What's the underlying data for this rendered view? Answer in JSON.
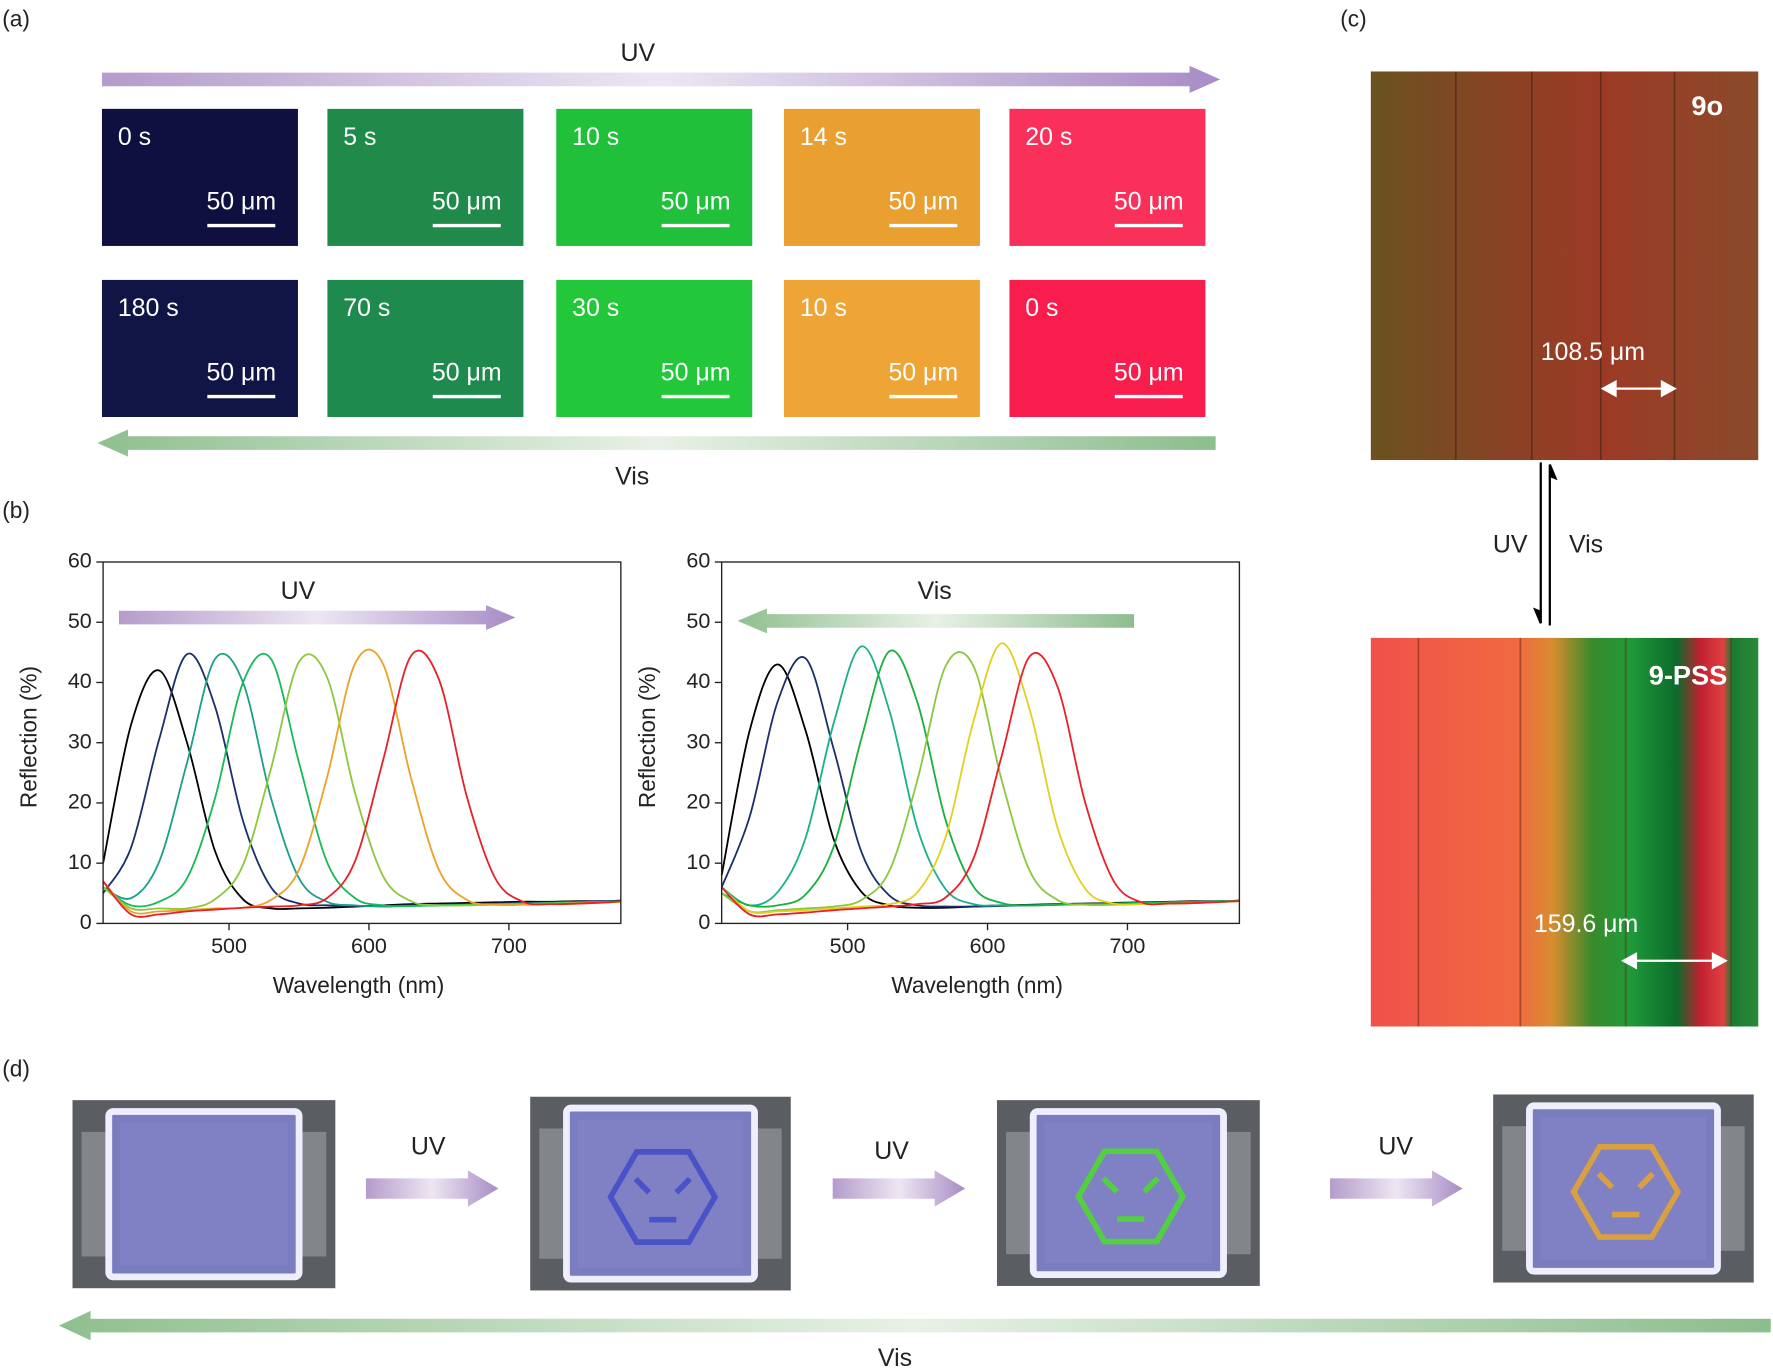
{
  "panel_labels": [
    "(a)",
    "(b)",
    "(c)",
    "(d)"
  ],
  "panel_a": {
    "uv_label": "UV",
    "vis_label": "Vis",
    "top_row": [
      {
        "time": "0 s",
        "scale_bar": "50 μm",
        "color": "#0f1040"
      },
      {
        "time": "5 s",
        "scale_bar": "50 μm",
        "color": "#1f8a4a"
      },
      {
        "time": "10 s",
        "scale_bar": "50 μm",
        "color": "#20c03a"
      },
      {
        "time": "14 s",
        "scale_bar": "50 μm",
        "color": "#e9a030"
      },
      {
        "time": "20 s",
        "scale_bar": "50 μm",
        "color": "#f8305a"
      }
    ],
    "bottom_row": [
      {
        "time": "180 s",
        "scale_bar": "50 μm",
        "color": "#101545"
      },
      {
        "time": "70 s",
        "scale_bar": "50 μm",
        "color": "#1f8a4e"
      },
      {
        "time": "30 s",
        "scale_bar": "50 μm",
        "color": "#22c83a"
      },
      {
        "time": "10 s",
        "scale_bar": "50 μm",
        "color": "#eea535"
      },
      {
        "time": "0 s",
        "scale_bar": "50 μm",
        "color": "#f81d4c"
      }
    ]
  },
  "chart_data": [
    {
      "type": "line",
      "xlabel": "Wavelength (nm)",
      "ylabel": "Reflection (%)",
      "annotation": "UV",
      "annotation_arrow": "right",
      "x": [
        410,
        430,
        450,
        470,
        490,
        510,
        530,
        550,
        570,
        590,
        610,
        630,
        650,
        670,
        690,
        710,
        730,
        750,
        770,
        780
      ],
      "xlim": [
        410,
        780
      ],
      "xticks": [
        500,
        600,
        700
      ],
      "ylim": [
        0,
        60
      ],
      "yticks": [
        0,
        10,
        20,
        30,
        40,
        50,
        60
      ],
      "series": [
        {
          "color": "#000000",
          "values": [
            10,
            33,
            42,
            30,
            12,
            4,
            2.5,
            2.5,
            2.6,
            2.8,
            3,
            3.2,
            3.3,
            3.4,
            3.5,
            3.6,
            3.6,
            3.7,
            3.7,
            3.8
          ]
        },
        {
          "color": "#1b2f6b",
          "values": [
            5,
            12.6,
            30.5,
            44.7,
            36,
            17,
            6,
            3.3,
            3,
            2.9,
            2.9,
            3,
            3.1,
            3.2,
            3.3,
            3.4,
            3.5,
            3.6,
            3.7,
            3.7
          ]
        },
        {
          "color": "#1aa088",
          "values": [
            6,
            4.2,
            10.2,
            26.7,
            43.9,
            40,
            20.8,
            7.5,
            3.6,
            3,
            2.8,
            2.9,
            3,
            3.1,
            3.2,
            3.3,
            3.4,
            3.5,
            3.6,
            3.7
          ]
        },
        {
          "color": "#19b85a",
          "values": [
            6,
            3,
            3.6,
            7.5,
            20.8,
            40,
            43.9,
            26.7,
            10.2,
            4.2,
            3,
            2.9,
            3,
            3.1,
            3.2,
            3.3,
            3.4,
            3.5,
            3.6,
            3.7
          ]
        },
        {
          "color": "#8ec63f",
          "values": [
            6,
            2.5,
            2.5,
            2.5,
            4,
            9.7,
            25.7,
            43.4,
            40.9,
            21.7,
            7.9,
            3.7,
            3,
            3,
            3.1,
            3.2,
            3.3,
            3.4,
            3.5,
            3.6
          ]
        },
        {
          "color": "#e8a32a",
          "values": [
            7,
            2,
            2,
            2.2,
            2.5,
            2.6,
            3.9,
            8.9,
            24.2,
            43.1,
            43.1,
            24.2,
            8.9,
            3.9,
            3.1,
            3.1,
            3.2,
            3.3,
            3.5,
            3.6
          ]
        },
        {
          "color": "#e8202a",
          "values": [
            7,
            1.5,
            1.5,
            2,
            2.3,
            2.6,
            2.8,
            3,
            4.2,
            10.3,
            27,
            44.4,
            40.5,
            21,
            7.6,
            3.6,
            3.2,
            3.3,
            3.5,
            3.7
          ]
        }
      ]
    },
    {
      "type": "line",
      "xlabel": "Wavelength (nm)",
      "ylabel": "Reflection (%)",
      "annotation": "Vis",
      "annotation_arrow": "left",
      "x": [
        410,
        430,
        450,
        470,
        490,
        510,
        530,
        550,
        570,
        590,
        610,
        630,
        650,
        670,
        690,
        710,
        730,
        750,
        770,
        780
      ],
      "xlim": [
        410,
        780
      ],
      "xticks": [
        500,
        600,
        700
      ],
      "ylim": [
        0,
        60
      ],
      "yticks": [
        0,
        10,
        20,
        30,
        40,
        50,
        60
      ],
      "series": [
        {
          "color": "#000000",
          "values": [
            8,
            32,
            43,
            32,
            14,
            5.2,
            3,
            2.6,
            2.6,
            2.8,
            3,
            3.1,
            3.2,
            3.3,
            3.4,
            3.5,
            3.6,
            3.7,
            3.7,
            3.8
          ]
        },
        {
          "color": "#1b2f6b",
          "values": [
            6,
            17.7,
            36.8,
            44,
            29,
            11.8,
            4.6,
            3,
            2.8,
            2.8,
            2.9,
            3,
            3.1,
            3.2,
            3.3,
            3.4,
            3.5,
            3.6,
            3.7,
            3.7
          ]
        },
        {
          "color": "#1ab08a",
          "values": [
            6,
            3,
            5.2,
            14.2,
            33.2,
            46,
            35.2,
            15.7,
            5.7,
            3.2,
            3,
            3,
            3.1,
            3.2,
            3.3,
            3.4,
            3.5,
            3.6,
            3.7,
            3.7
          ]
        },
        {
          "color": "#19b040",
          "values": [
            5,
            3,
            3,
            4.8,
            12.7,
            30.8,
            45.2,
            36.6,
            17.2,
            6.1,
            3.4,
            3,
            3.1,
            3.2,
            3.3,
            3.4,
            3.5,
            3.6,
            3.7,
            3.7
          ]
        },
        {
          "color": "#8ec63f",
          "values": [
            5,
            2,
            2.2,
            2.5,
            2.8,
            3.9,
            8.8,
            23.9,
            42.7,
            42.7,
            23.9,
            8.8,
            3.9,
            3.1,
            3.1,
            3.2,
            3.3,
            3.4,
            3.6,
            3.7
          ]
        },
        {
          "color": "#e0d020",
          "values": [
            6,
            2,
            2,
            2.2,
            2.5,
            2.8,
            3.2,
            5.2,
            14.3,
            33.6,
            46.5,
            35.6,
            15.9,
            5.7,
            3.3,
            3.2,
            3.3,
            3.4,
            3.6,
            3.7
          ]
        },
        {
          "color": "#e8202a",
          "values": [
            6,
            1.5,
            1.5,
            1.8,
            2.2,
            2.5,
            2.8,
            3.2,
            4.3,
            10.8,
            27.7,
            44.3,
            39.3,
            19.9,
            7.1,
            3.5,
            3.3,
            3.4,
            3.6,
            3.7
          ]
        }
      ]
    }
  ],
  "panel_c": {
    "top_image_label": "9o",
    "top_width": "108.5 μm",
    "uv_label": "UV",
    "vis_label": "Vis",
    "bottom_image_label": "9-PSS",
    "bottom_width": "159.6 μm"
  },
  "panel_d": {
    "arrow_labels": [
      "UV",
      "UV",
      "UV"
    ],
    "vis_label": "Vis"
  }
}
